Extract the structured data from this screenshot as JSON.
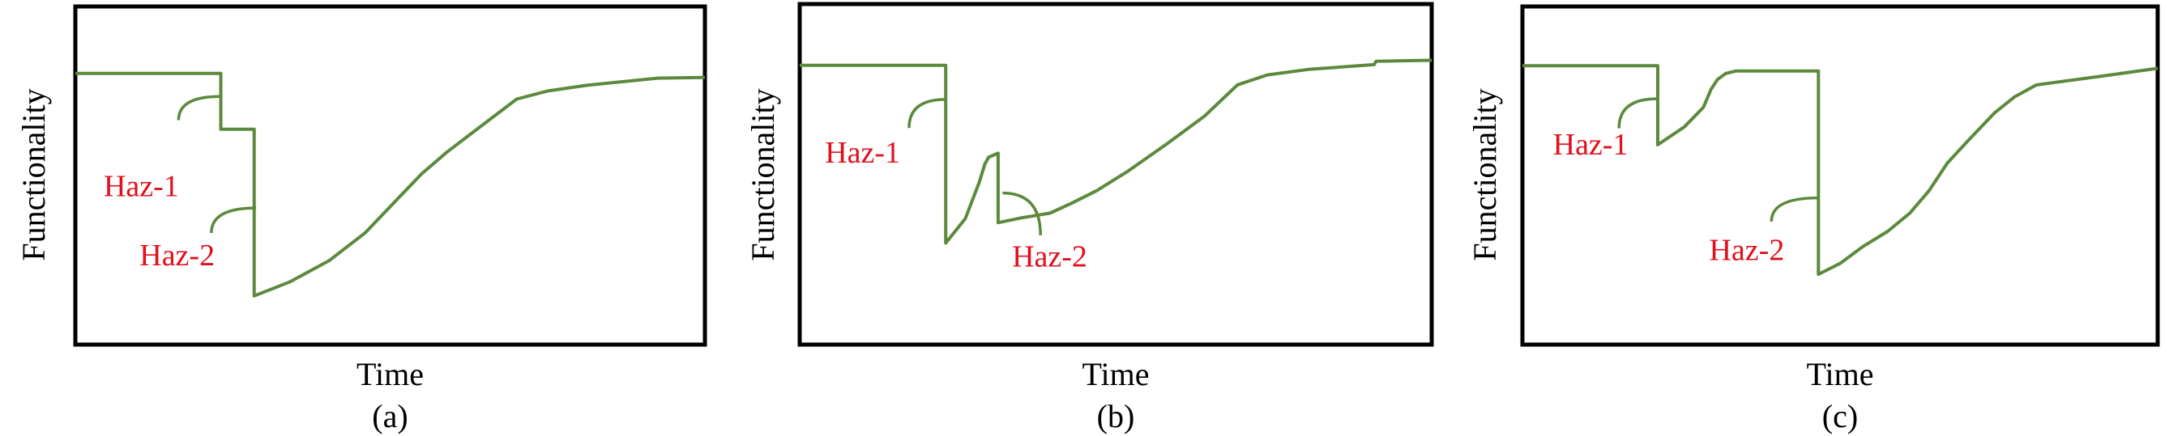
{
  "colors": {
    "curve": "#5b8a3c",
    "hazard_label": "#e0101c",
    "frame": "#000000"
  },
  "chart_data": [
    {
      "type": "line",
      "panel_label": "(a)",
      "xlabel": "Time",
      "ylabel": "Functionality",
      "xlim": [
        0,
        100
      ],
      "ylim": [
        0,
        100
      ],
      "grid": false,
      "annotations": [
        "Haz-1",
        "Haz-2"
      ],
      "points": [
        [
          0,
          80.2
        ],
        [
          23.1,
          80.2
        ],
        [
          23.1,
          63.7
        ],
        [
          28.4,
          63.7
        ],
        [
          28.4,
          14.4
        ],
        [
          34,
          18.5
        ],
        [
          40.3,
          24.8
        ],
        [
          46,
          33
        ],
        [
          51.5,
          43.7
        ],
        [
          55,
          50.5
        ],
        [
          59,
          56.9
        ],
        [
          64,
          64
        ],
        [
          70.1,
          72.6
        ],
        [
          75,
          75
        ],
        [
          81.3,
          76.7
        ],
        [
          92.5,
          78.8
        ],
        [
          100,
          79.0
        ]
      ]
    },
    {
      "type": "line",
      "panel_label": "(b)",
      "xlabel": "Time",
      "ylabel": "Functionality",
      "xlim": [
        0,
        100
      ],
      "ylim": [
        0,
        100
      ],
      "grid": false,
      "annotations": [
        "Haz-1",
        "Haz-2"
      ],
      "points": [
        [
          0,
          82
        ],
        [
          23.1,
          82
        ],
        [
          23.1,
          29.8
        ],
        [
          26.2,
          37
        ],
        [
          28.4,
          47.6
        ],
        [
          29.3,
          53
        ],
        [
          29.9,
          55
        ],
        [
          31.4,
          56.2
        ],
        [
          31.4,
          35.8
        ],
        [
          35,
          37.2
        ],
        [
          39.6,
          38.6
        ],
        [
          43,
          41.5
        ],
        [
          47,
          45.2
        ],
        [
          52,
          51
        ],
        [
          58.2,
          59.1
        ],
        [
          64,
          67
        ],
        [
          69.3,
          76.3
        ],
        [
          74,
          79.2
        ],
        [
          80.5,
          80.8
        ],
        [
          90.9,
          82.2
        ],
        [
          91.2,
          83.2
        ],
        [
          100,
          83.5
        ]
      ]
    },
    {
      "type": "line",
      "panel_label": "(c)",
      "xlabel": "Time",
      "ylabel": "Functionality",
      "xlim": [
        0,
        100
      ],
      "ylim": [
        0,
        100
      ],
      "grid": false,
      "annotations": [
        "Haz-1",
        "Haz-2"
      ],
      "points": [
        [
          0,
          82.5
        ],
        [
          21.3,
          82.5
        ],
        [
          21.3,
          59.1
        ],
        [
          25.5,
          64.4
        ],
        [
          28.5,
          70.2
        ],
        [
          29.7,
          75.5
        ],
        [
          30.7,
          78.4
        ],
        [
          32,
          80.2
        ],
        [
          33.6,
          80.9
        ],
        [
          46.6,
          80.9
        ],
        [
          46.6,
          20.8
        ],
        [
          50,
          24
        ],
        [
          53.6,
          29
        ],
        [
          57.5,
          33.5
        ],
        [
          61,
          38.9
        ],
        [
          64,
          45.5
        ],
        [
          66.9,
          53.7
        ],
        [
          70.5,
          61
        ],
        [
          74.3,
          68.5
        ],
        [
          77.5,
          73.3
        ],
        [
          80.9,
          76.8
        ],
        [
          90.5,
          79.2
        ],
        [
          100,
          81.7
        ]
      ]
    }
  ]
}
